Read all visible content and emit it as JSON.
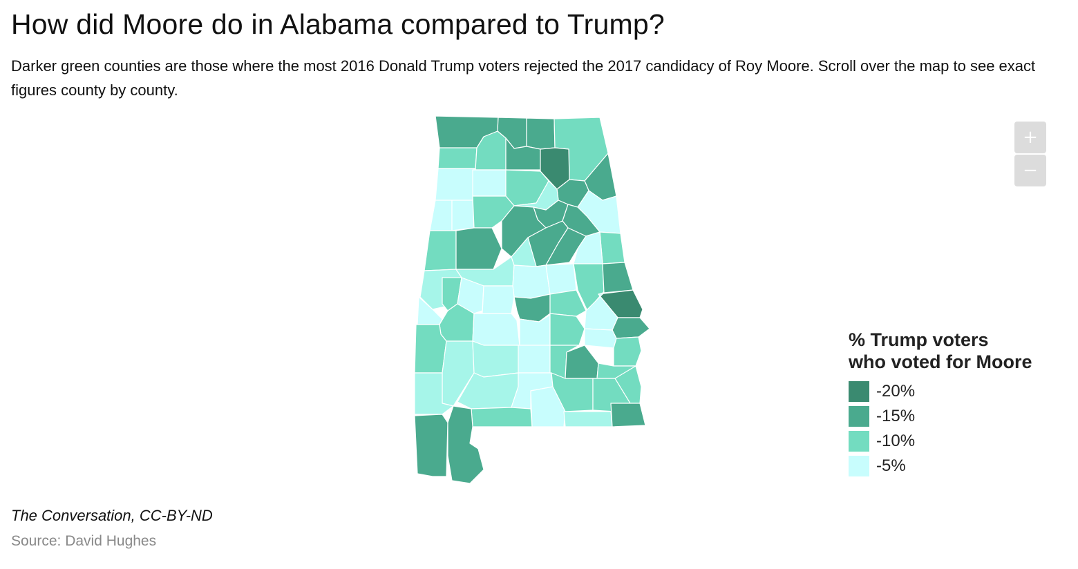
{
  "title": "How did Moore do in Alabama compared to Trump?",
  "subtitle": "Darker green counties are those where the most 2016 Donald Trump voters rejected the 2017 candidacy of Roy Moore. Scroll over the map to see exact figures county by county.",
  "zoom": {
    "in_label": "+",
    "out_label": "−"
  },
  "legend": {
    "title_line1": "% Trump voters",
    "title_line2": "who voted for Moore",
    "items": [
      {
        "label": "-20%",
        "color": "#3a8a70"
      },
      {
        "label": "-15%",
        "color": "#4aaa8e"
      },
      {
        "label": "-10%",
        "color": "#73dcc0"
      },
      {
        "label": "-5%",
        "color": "#c8fdfd"
      }
    ]
  },
  "colors": {
    "border": "#ffffff",
    "class_5b": "#a6f5e9"
  },
  "credit": "The Conversation, CC-BY-ND",
  "source": "Source: David Hughes"
}
